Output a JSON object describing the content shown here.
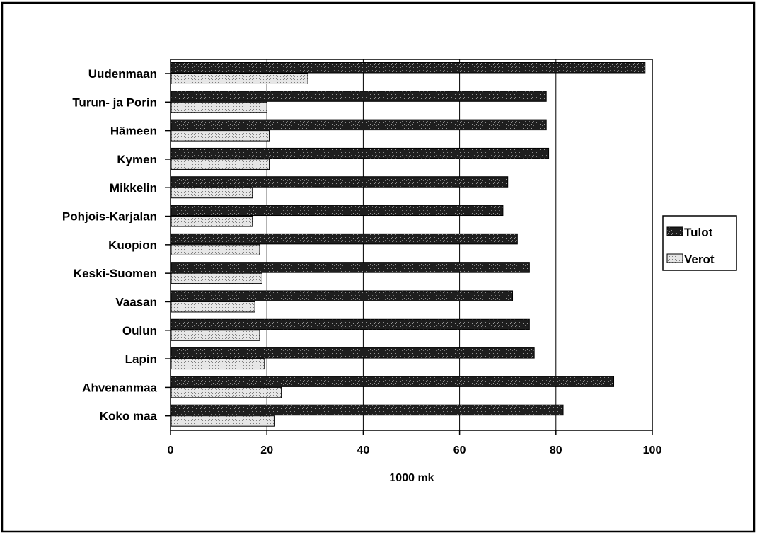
{
  "chart_data": {
    "type": "bar",
    "orientation": "horizontal",
    "categories": [
      "Uudenmaan",
      "Turun- ja Porin",
      "Hämeen",
      "Kymen",
      "Mikkelin",
      "Pohjois-Karjalan",
      "Kuopion",
      "Keski-Suomen",
      "Vaasan",
      "Oulun",
      "Lapin",
      "Ahvenanmaa",
      "Koko maa"
    ],
    "series": [
      {
        "name": "Tulot",
        "color": "#1e1e1e",
        "values": [
          98.5,
          78,
          78,
          78.5,
          70,
          69,
          72,
          74.5,
          71,
          74.5,
          75.5,
          92,
          81.5
        ]
      },
      {
        "name": "Verot",
        "color": "#c8c8c8",
        "values": [
          28.5,
          20,
          20.5,
          20.5,
          17,
          17,
          18.5,
          19,
          17.5,
          18.5,
          19.5,
          23,
          21.5
        ]
      }
    ],
    "xlabel": "1000 mk",
    "xlim": [
      0,
      100
    ],
    "xticks": [
      0,
      20,
      40,
      60,
      80,
      100
    ],
    "grid": "vertical",
    "legend": "right"
  }
}
